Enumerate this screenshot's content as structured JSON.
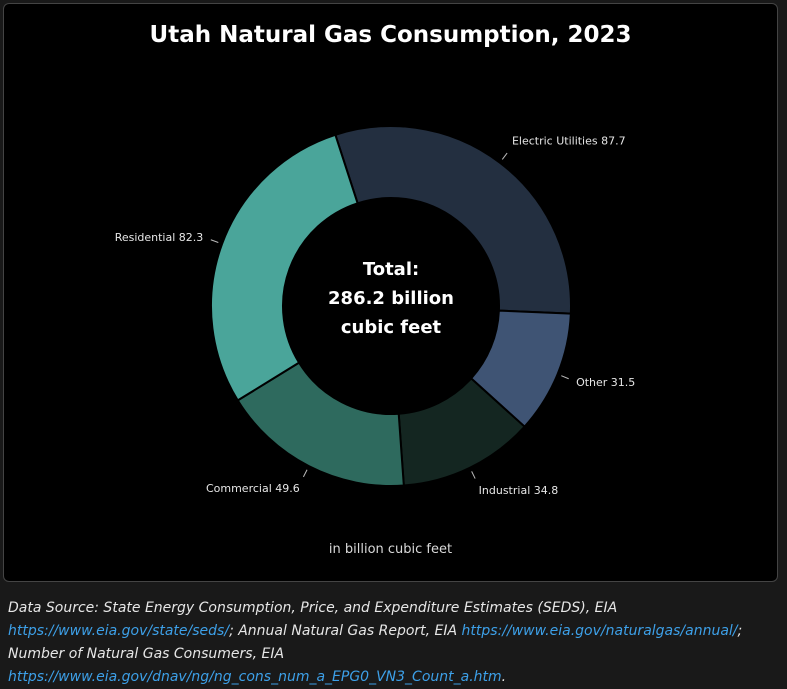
{
  "chart_data": {
    "type": "pie",
    "title": "Utah Natural Gas Consumption, 2023",
    "center_label": [
      "Total:",
      "286.2 billion",
      "cubic feet"
    ],
    "unit_note": "in billion cubic feet",
    "slices": [
      {
        "label": "Electric Utilities",
        "value": 87.7,
        "color": "#232f40"
      },
      {
        "label": "Other",
        "value": 31.5,
        "color": "#3f5474"
      },
      {
        "label": "Industrial",
        "value": 34.8,
        "color": "#142621"
      },
      {
        "label": "Commercial",
        "value": 49.6,
        "color": "#2e6a5e"
      },
      {
        "label": "Residential",
        "value": 82.3,
        "color": "#4aa59a"
      }
    ]
  },
  "source": {
    "line1": "Data Source: State Energy Consumption, Price, and Expenditure Estimates (SEDS), EIA",
    "link1": "https://www.eia.gov/state/seds/",
    "mid2": "; Annual Natural Gas Report, EIA ",
    "link2": "https://www.eia.gov/naturalgas/annual/",
    "tail2": ";",
    "pre3": "Number of Natural Gas Consumers, EIA ",
    "link3": "https://www.eia.gov/dnav/ng/ng_cons_num_a_EPG0_VN3_Count_a.htm",
    "tail3": "."
  }
}
